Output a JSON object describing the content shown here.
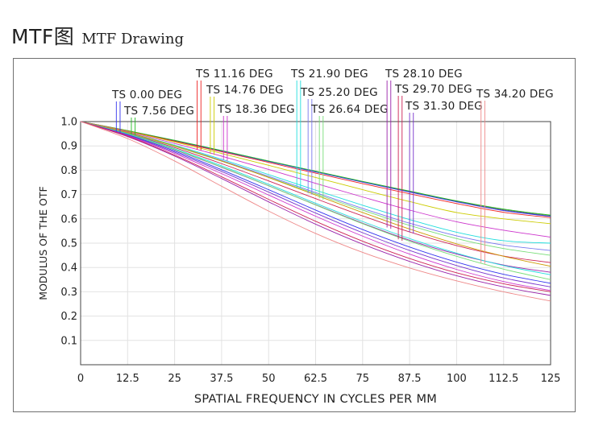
{
  "header": {
    "title_cn": "MTF图",
    "title_en": "MTF Drawing"
  },
  "chart_data": {
    "type": "line",
    "title": "",
    "xlabel": "SPATIAL  FREQUENCY  IN  CYCLES  PER  MM",
    "ylabel": "MODULUS  OF  THE  OTF",
    "xlim": [
      0,
      125
    ],
    "ylim": [
      0,
      1.0
    ],
    "x_ticks": [
      "0",
      "12.5",
      "25",
      "37.5",
      "50",
      "62.5",
      "75",
      "87.5",
      "100",
      "112.5",
      "125"
    ],
    "y_ticks": [
      "0.1",
      "0.2",
      "0.3",
      "0.4",
      "0.5",
      "0.6",
      "0.7",
      "0.8",
      "0.9",
      "1.0"
    ],
    "grid": true,
    "x": [
      0,
      12.5,
      25,
      37.5,
      50,
      62.5,
      75,
      87.5,
      100,
      112.5,
      125
    ],
    "fields": [
      {
        "label": "TS 0.00  DEG",
        "color": "#3333ee",
        "marker_x": [
          9.5,
          10.5
        ]
      },
      {
        "label": "TS 7.56  DEG",
        "color": "#22bb22",
        "marker_x": [
          13.5,
          14.5
        ]
      },
      {
        "label": "TS 11.16  DEG",
        "color": "#ee2222",
        "marker_x": [
          31.0,
          32.0
        ]
      },
      {
        "label": "TS 14.76  DEG",
        "color": "#cccc00",
        "marker_x": [
          34.5,
          35.5
        ]
      },
      {
        "label": "TS 18.36  DEG",
        "color": "#cc33cc",
        "marker_x": [
          38.0,
          39.0
        ]
      },
      {
        "label": "TS 21.90  DEG",
        "color": "#22dddd",
        "marker_x": [
          57.5,
          58.5
        ]
      },
      {
        "label": "TS 25.20  DEG",
        "color": "#7777ee",
        "marker_x": [
          60.5,
          61.5
        ]
      },
      {
        "label": "TS 26.64  DEG",
        "color": "#77dd77",
        "marker_x": [
          63.5,
          64.5
        ]
      },
      {
        "label": "TS 28.10  DEG",
        "color": "#9922aa",
        "marker_x": [
          81.5,
          82.5
        ]
      },
      {
        "label": "TS 29.70  DEG",
        "color": "#cc2255",
        "marker_x": [
          84.5,
          85.5
        ]
      },
      {
        "label": "TS 31.30  DEG",
        "color": "#7733cc",
        "marker_x": [
          87.5,
          88.5
        ]
      },
      {
        "label": "TS 34.20  DEG",
        "color": "#ee8888",
        "marker_x": [
          106.5,
          107.5
        ]
      }
    ],
    "series": [
      {
        "color": "#666666",
        "values": [
          1.0,
          0.962,
          0.922,
          0.88,
          0.837,
          0.795,
          0.753,
          0.712,
          0.672,
          0.637,
          0.612
        ]
      },
      {
        "color": "#3333ee",
        "values": [
          1.0,
          0.962,
          0.921,
          0.879,
          0.836,
          0.793,
          0.751,
          0.71,
          0.67,
          0.634,
          0.61
        ]
      },
      {
        "color": "#22bb22",
        "values": [
          1.0,
          0.963,
          0.923,
          0.881,
          0.838,
          0.796,
          0.754,
          0.714,
          0.674,
          0.64,
          0.615
        ]
      },
      {
        "color": "#ee2222",
        "values": [
          1.0,
          0.961,
          0.919,
          0.876,
          0.832,
          0.788,
          0.745,
          0.703,
          0.663,
          0.627,
          0.605
        ]
      },
      {
        "color": "#cccc00",
        "values": [
          1.0,
          0.96,
          0.916,
          0.869,
          0.82,
          0.77,
          0.72,
          0.671,
          0.626,
          0.6,
          0.58
        ]
      },
      {
        "color": "#cc33cc",
        "values": [
          1.0,
          0.958,
          0.91,
          0.858,
          0.803,
          0.746,
          0.69,
          0.636,
          0.588,
          0.553,
          0.525
        ]
      },
      {
        "color": "#22dddd",
        "values": [
          1.0,
          0.955,
          0.903,
          0.845,
          0.782,
          0.718,
          0.656,
          0.597,
          0.545,
          0.51,
          0.5
        ]
      },
      {
        "color": "#7777ee",
        "values": [
          1.0,
          0.954,
          0.9,
          0.84,
          0.775,
          0.708,
          0.643,
          0.582,
          0.53,
          0.492,
          0.47
        ]
      },
      {
        "color": "#77dd77",
        "values": [
          1.0,
          0.953,
          0.898,
          0.837,
          0.771,
          0.703,
          0.636,
          0.573,
          0.519,
          0.478,
          0.45
        ]
      },
      {
        "color": "#cc2255",
        "values": [
          1.0,
          0.951,
          0.893,
          0.827,
          0.756,
          0.683,
          0.612,
          0.546,
          0.49,
          0.447,
          0.42
        ]
      },
      {
        "color": "#9922aa",
        "values": [
          1.0,
          0.948,
          0.884,
          0.812,
          0.736,
          0.658,
          0.582,
          0.512,
          0.455,
          0.41,
          0.38
        ]
      },
      {
        "color": "#cc9900",
        "values": [
          1.0,
          0.955,
          0.9,
          0.838,
          0.77,
          0.698,
          0.626,
          0.558,
          0.497,
          0.446,
          0.405
        ]
      },
      {
        "color": "#22dddd",
        "values": [
          1.0,
          0.95,
          0.888,
          0.818,
          0.742,
          0.664,
          0.589,
          0.519,
          0.459,
          0.408,
          0.37
        ]
      },
      {
        "color": "#77dd77",
        "values": [
          1.0,
          0.948,
          0.885,
          0.813,
          0.736,
          0.657,
          0.58,
          0.508,
          0.446,
          0.393,
          0.35
        ]
      },
      {
        "color": "#3333ee",
        "values": [
          1.0,
          0.946,
          0.879,
          0.802,
          0.72,
          0.636,
          0.556,
          0.484,
          0.422,
          0.372,
          0.335
        ]
      },
      {
        "color": "#7733cc",
        "values": [
          1.0,
          0.944,
          0.874,
          0.795,
          0.71,
          0.624,
          0.543,
          0.47,
          0.408,
          0.357,
          0.32
        ]
      },
      {
        "color": "#cc33cc",
        "values": [
          1.0,
          0.942,
          0.869,
          0.786,
          0.698,
          0.611,
          0.529,
          0.455,
          0.392,
          0.342,
          0.305
        ]
      },
      {
        "color": "#9922aa",
        "values": [
          1.0,
          0.938,
          0.858,
          0.766,
          0.67,
          0.578,
          0.496,
          0.425,
          0.366,
          0.32,
          0.285
        ]
      },
      {
        "color": "#cc2255",
        "values": [
          1.0,
          0.94,
          0.862,
          0.773,
          0.68,
          0.59,
          0.508,
          0.437,
          0.378,
          0.333,
          0.3
        ]
      },
      {
        "color": "#ee8888",
        "values": [
          1.0,
          0.93,
          0.838,
          0.734,
          0.632,
          0.54,
          0.462,
          0.398,
          0.345,
          0.3,
          0.262
        ]
      }
    ]
  }
}
